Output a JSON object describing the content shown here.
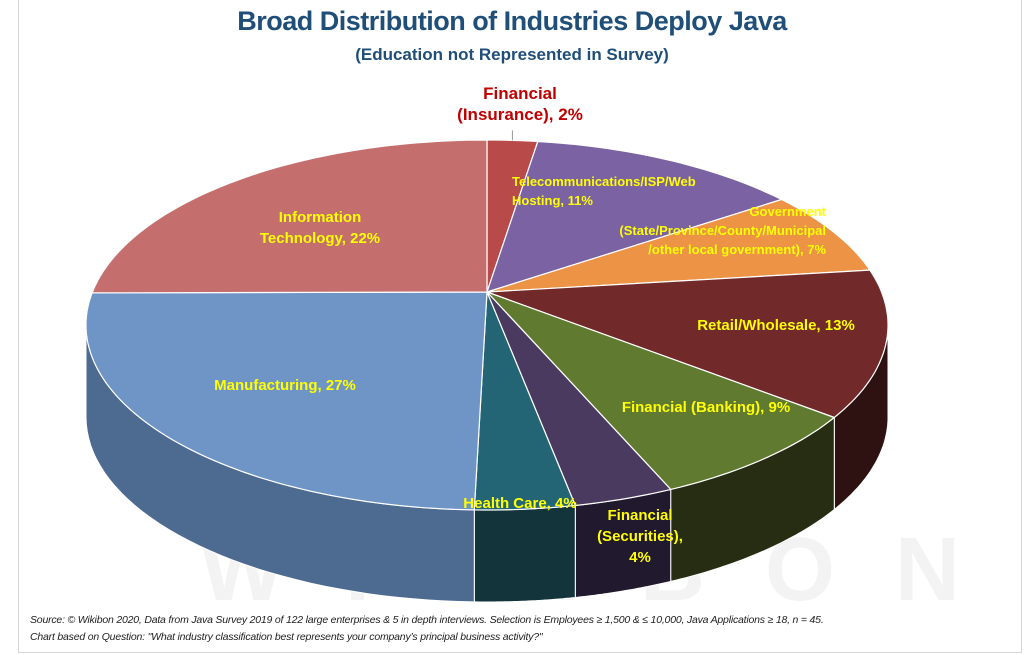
{
  "chart_data": {
    "type": "pie",
    "variant": "3d",
    "title": "Broad Distribution of Industries Deploy Java",
    "subtitle": "(Education not Represented in Survey)",
    "start": "top",
    "direction": "clockwise",
    "slices": [
      {
        "name": "Financial (Insurance)",
        "label": [
          "Financial",
          "(Insurance), 2%"
        ],
        "value": 2,
        "color": "#b84a4a",
        "side": "#7a2e2e"
      },
      {
        "name": "Telecommunications/ISP/Web Hosting",
        "label": [
          "Telecommunications/ISP/Web",
          "Hosting, 11%"
        ],
        "value": 11,
        "color": "#7a62a3",
        "side": "#4a3b66"
      },
      {
        "name": "Government (State/Province/County/Municipal/other local government)",
        "label": [
          "Government",
          "(State/Province/County/Municipal",
          "/other local government), 7%"
        ],
        "value": 7,
        "color": "#ec9346",
        "side": "#a8642c"
      },
      {
        "name": "Retail/Wholesale",
        "label": [
          "Retail/Wholesale, 13%"
        ],
        "value": 13,
        "color": "#72292a",
        "side": "#2e1212"
      },
      {
        "name": "Financial (Banking)",
        "label": [
          "Financial (Banking), 9%"
        ],
        "value": 9,
        "color": "#607a30",
        "side": "#262d12"
      },
      {
        "name": "Financial (Securities)",
        "label": [
          "Financial",
          "(Securities),",
          "4%"
        ],
        "value": 4,
        "color": "#4b3a60",
        "side": "#21192e"
      },
      {
        "name": "Health Care",
        "label": [
          "Health Care, 4%"
        ],
        "value": 4,
        "color": "#236574",
        "side": "#14343c"
      },
      {
        "name": "Manufacturing",
        "label": [
          "Manufacturing, 27%"
        ],
        "value": 27,
        "color": "#6e95c6",
        "side": "#4d6a91"
      },
      {
        "name": "Information Technology",
        "label": [
          "Information",
          "Technology, 22%"
        ],
        "value": 22,
        "color": "#c56e6e",
        "side": "#8f4c4c"
      }
    ],
    "label_color": "#ffff00",
    "callout_label_color": "#c00000"
  },
  "watermark": "WIKIBON",
  "source_lines": [
    "Source: © Wikibon 2020, Data from Java Survey 2019 of 122 large enterprises & 5 in depth interviews. Selection is Employees  ≥ 1,500 & ≤ 10,000, Java Applications ≥ 18, n = 45.",
    "Chart  based on Question: \"What industry classification best represents your company’s principal business activity?\""
  ]
}
